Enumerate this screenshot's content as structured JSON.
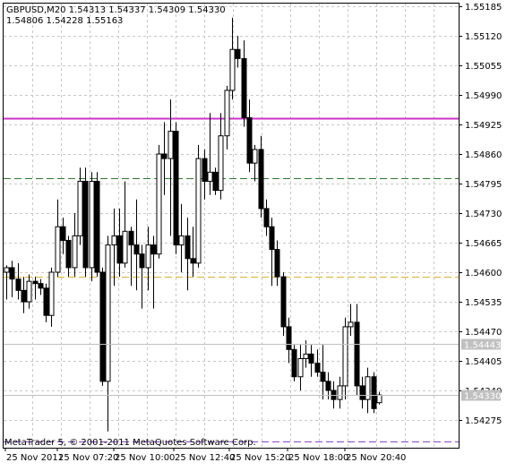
{
  "header": {
    "line1": "GBPUSD,M20  1.54313 1.54337 1.54309 1.54330",
    "line2": "1.54806 1.54228 1.55163"
  },
  "copyright": "MetaTrader 5, © 2001-2011 MetaQuotes Software Corp.",
  "chart_data": {
    "type": "candlestick",
    "symbol": "GBPUSD",
    "timeframe": "M20",
    "y_ticks": [
      "1.55185",
      "1.55120",
      "1.55055",
      "1.54990",
      "1.54925",
      "1.54860",
      "1.54795",
      "1.54730",
      "1.54665",
      "1.54600",
      "1.54535",
      "1.54470",
      "1.54405",
      "1.54340",
      "1.54275"
    ],
    "ylim": [
      1.54245,
      1.55185
    ],
    "x_ticks": [
      "25 Nov 2011",
      "25 Nov 07:20",
      "25 Nov 10:00",
      "25 Nov 12:40",
      "25 Nov 15:20",
      "25 Nov 18:00",
      "25 Nov 20:40"
    ],
    "grid": true,
    "price_labels": [
      {
        "text": "1.54443",
        "value": 1.54443
      },
      {
        "text": "1.54330",
        "value": 1.5433
      }
    ],
    "levels": [
      {
        "value": 1.54939,
        "color": "#cc33cc",
        "style": "solid"
      },
      {
        "value": 1.54806,
        "color": "#2d7a2d",
        "style": "dashed"
      },
      {
        "value": 1.5459,
        "color": "#e0b030",
        "style": "dashed"
      },
      {
        "value": 1.54228,
        "color": "#8844cc",
        "style": "dashed"
      }
    ],
    "candles": [
      {
        "o": 1.546,
        "h": 1.54615,
        "l": 1.5454,
        "c": 1.5461
      },
      {
        "o": 1.5461,
        "h": 1.54625,
        "l": 1.54545,
        "c": 1.54585
      },
      {
        "o": 1.54585,
        "h": 1.5462,
        "l": 1.5454,
        "c": 1.5456
      },
      {
        "o": 1.5456,
        "h": 1.5459,
        "l": 1.5451,
        "c": 1.54535
      },
      {
        "o": 1.54535,
        "h": 1.54595,
        "l": 1.5452,
        "c": 1.5458
      },
      {
        "o": 1.5458,
        "h": 1.5459,
        "l": 1.5454,
        "c": 1.54575
      },
      {
        "o": 1.54575,
        "h": 1.54585,
        "l": 1.5455,
        "c": 1.54565
      },
      {
        "o": 1.54565,
        "h": 1.54575,
        "l": 1.5449,
        "c": 1.54505
      },
      {
        "o": 1.54505,
        "h": 1.5461,
        "l": 1.5448,
        "c": 1.546
      },
      {
        "o": 1.546,
        "h": 1.5476,
        "l": 1.5459,
        "c": 1.547
      },
      {
        "o": 1.547,
        "h": 1.5472,
        "l": 1.5464,
        "c": 1.5467
      },
      {
        "o": 1.5467,
        "h": 1.5468,
        "l": 1.5459,
        "c": 1.5461
      },
      {
        "o": 1.5461,
        "h": 1.5473,
        "l": 1.5459,
        "c": 1.5468
      },
      {
        "o": 1.5468,
        "h": 1.5483,
        "l": 1.5466,
        "c": 1.548
      },
      {
        "o": 1.548,
        "h": 1.5483,
        "l": 1.5459,
        "c": 1.5461
      },
      {
        "o": 1.5461,
        "h": 1.5482,
        "l": 1.5458,
        "c": 1.548
      },
      {
        "o": 1.548,
        "h": 1.5482,
        "l": 1.5459,
        "c": 1.546
      },
      {
        "o": 1.546,
        "h": 1.5461,
        "l": 1.5435,
        "c": 1.5436
      },
      {
        "o": 1.5436,
        "h": 1.5468,
        "l": 1.5425,
        "c": 1.5466
      },
      {
        "o": 1.5466,
        "h": 1.5474,
        "l": 1.5457,
        "c": 1.5468
      },
      {
        "o": 1.5468,
        "h": 1.5474,
        "l": 1.5459,
        "c": 1.5462
      },
      {
        "o": 1.5462,
        "h": 1.548,
        "l": 1.5461,
        "c": 1.5469
      },
      {
        "o": 1.5469,
        "h": 1.547,
        "l": 1.5457,
        "c": 1.5466
      },
      {
        "o": 1.5466,
        "h": 1.5476,
        "l": 1.5456,
        "c": 1.5464
      },
      {
        "o": 1.5464,
        "h": 1.5466,
        "l": 1.5452,
        "c": 1.5461
      },
      {
        "o": 1.5461,
        "h": 1.547,
        "l": 1.5456,
        "c": 1.5466
      },
      {
        "o": 1.5466,
        "h": 1.5468,
        "l": 1.5452,
        "c": 1.5464
      },
      {
        "o": 1.5464,
        "h": 1.5488,
        "l": 1.5463,
        "c": 1.5486
      },
      {
        "o": 1.5486,
        "h": 1.5493,
        "l": 1.5477,
        "c": 1.5485
      },
      {
        "o": 1.5485,
        "h": 1.5498,
        "l": 1.5468,
        "c": 1.5491
      },
      {
        "o": 1.5491,
        "h": 1.5493,
        "l": 1.5464,
        "c": 1.5466
      },
      {
        "o": 1.5466,
        "h": 1.5475,
        "l": 1.546,
        "c": 1.5468
      },
      {
        "o": 1.5468,
        "h": 1.5472,
        "l": 1.5456,
        "c": 1.5463
      },
      {
        "o": 1.5463,
        "h": 1.547,
        "l": 1.5459,
        "c": 1.5462
      },
      {
        "o": 1.5462,
        "h": 1.5488,
        "l": 1.5461,
        "c": 1.5485
      },
      {
        "o": 1.5485,
        "h": 1.5487,
        "l": 1.5476,
        "c": 1.548
      },
      {
        "o": 1.548,
        "h": 1.5495,
        "l": 1.5477,
        "c": 1.5482
      },
      {
        "o": 1.5482,
        "h": 1.5483,
        "l": 1.5477,
        "c": 1.5478
      },
      {
        "o": 1.5478,
        "h": 1.5495,
        "l": 1.5476,
        "c": 1.549
      },
      {
        "o": 1.549,
        "h": 1.5501,
        "l": 1.5487,
        "c": 1.55
      },
      {
        "o": 1.55,
        "h": 1.5516,
        "l": 1.5498,
        "c": 1.5509
      },
      {
        "o": 1.5509,
        "h": 1.5512,
        "l": 1.5505,
        "c": 1.5507
      },
      {
        "o": 1.5507,
        "h": 1.5511,
        "l": 1.5492,
        "c": 1.5494
      },
      {
        "o": 1.5494,
        "h": 1.5498,
        "l": 1.5482,
        "c": 1.5484
      },
      {
        "o": 1.5484,
        "h": 1.5488,
        "l": 1.548,
        "c": 1.5487
      },
      {
        "o": 1.5487,
        "h": 1.549,
        "l": 1.5472,
        "c": 1.5474
      },
      {
        "o": 1.5474,
        "h": 1.5476,
        "l": 1.5468,
        "c": 1.547
      },
      {
        "o": 1.547,
        "h": 1.5472,
        "l": 1.5457,
        "c": 1.5465
      },
      {
        "o": 1.5465,
        "h": 1.5467,
        "l": 1.5457,
        "c": 1.5459
      },
      {
        "o": 1.5459,
        "h": 1.546,
        "l": 1.5446,
        "c": 1.5448
      },
      {
        "o": 1.5448,
        "h": 1.545,
        "l": 1.544,
        "c": 1.5443
      },
      {
        "o": 1.5443,
        "h": 1.5444,
        "l": 1.5436,
        "c": 1.5437
      },
      {
        "o": 1.5437,
        "h": 1.5444,
        "l": 1.5434,
        "c": 1.5441
      },
      {
        "o": 1.5441,
        "h": 1.5445,
        "l": 1.5439,
        "c": 1.5442
      },
      {
        "o": 1.5442,
        "h": 1.5444,
        "l": 1.5437,
        "c": 1.544
      },
      {
        "o": 1.544,
        "h": 1.5443,
        "l": 1.5437,
        "c": 1.5438
      },
      {
        "o": 1.5438,
        "h": 1.5444,
        "l": 1.5432,
        "c": 1.5436
      },
      {
        "o": 1.5436,
        "h": 1.5438,
        "l": 1.5432,
        "c": 1.5434
      },
      {
        "o": 1.5434,
        "h": 1.5436,
        "l": 1.543,
        "c": 1.5432
      },
      {
        "o": 1.5432,
        "h": 1.5437,
        "l": 1.543,
        "c": 1.5435
      },
      {
        "o": 1.5435,
        "h": 1.545,
        "l": 1.5432,
        "c": 1.5448
      },
      {
        "o": 1.5448,
        "h": 1.5453,
        "l": 1.5446,
        "c": 1.5449
      },
      {
        "o": 1.5449,
        "h": 1.5453,
        "l": 1.5433,
        "c": 1.5435
      },
      {
        "o": 1.5435,
        "h": 1.5437,
        "l": 1.543,
        "c": 1.5432
      },
      {
        "o": 1.5432,
        "h": 1.5439,
        "l": 1.5429,
        "c": 1.5437
      },
      {
        "o": 1.5437,
        "h": 1.5438,
        "l": 1.5429,
        "c": 1.543
      },
      {
        "o": 1.54313,
        "h": 1.54337,
        "l": 1.54309,
        "c": 1.5433
      }
    ]
  }
}
